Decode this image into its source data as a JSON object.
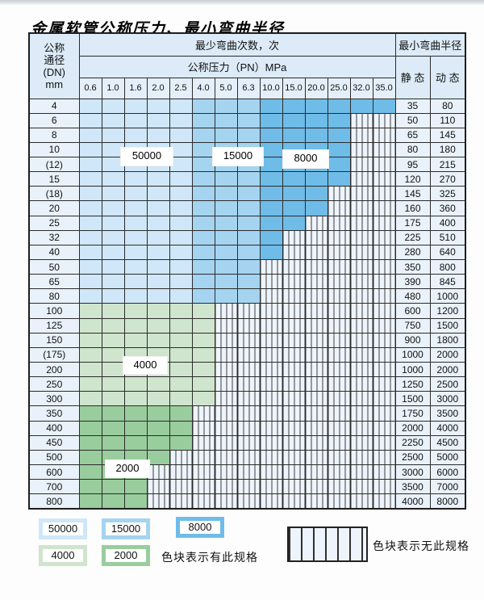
{
  "page": {
    "title": "金属软管公称压力、最小弯曲半径"
  },
  "table": {
    "header": {
      "dn_label_lines": [
        "公称",
        "通径",
        "(DN)",
        "mm"
      ],
      "cycles_label": "最少弯曲次数，次",
      "pressure_label": "公称压力（PN）MPa",
      "radius_label": "最小弯曲半径",
      "static_label": "静 态",
      "dynamic_label": "动 态"
    },
    "band_by_column": [
      "blue_50000",
      "blue_50000",
      "blue_50000",
      "blue_50000",
      "blue_50000",
      "blue_15000",
      "blue_15000",
      "blue_15000",
      "blue_8000",
      "blue_8000",
      "blue_8000",
      "blue_8000",
      "blue_8000",
      "blue_8000"
    ]
  },
  "overlay_labels": {
    "l50000": "50000",
    "l15000": "15000",
    "l8000": "8000",
    "l4000": "4000",
    "l2000": "2000"
  },
  "legend": {
    "items": [
      {
        "label": "50000",
        "band": "blue_50000"
      },
      {
        "label": "15000",
        "band": "blue_15000"
      },
      {
        "label": "8000",
        "band": "blue_8000"
      },
      {
        "label": "4000",
        "band": "green_4000"
      },
      {
        "label": "2000",
        "band": "green_2000"
      }
    ],
    "note_has_spec": "色块表示有此规格",
    "note_no_spec": "色块表示无此规格"
  },
  "colors": {
    "blue_50000": "#cfe7f8",
    "blue_15000": "#a5d4f0",
    "blue_8000": "#6fbce8",
    "green_4000": "#cfe5cd",
    "green_2000": "#99cd9d",
    "hatch_bg": "#eef4fb",
    "hatch_line": "#3c3c3c",
    "cell_bg": "#e9f2fa",
    "header_bg": "#dcebf7",
    "grid": "#2b2b2b"
  },
  "chart_data": {
    "type": "table",
    "title": "金属软管公称压力、最小弯曲半径",
    "pn_columns": [
      "0.6",
      "1.0",
      "1.6",
      "2.0",
      "2.5",
      "4.0",
      "5.0",
      "6.3",
      "10.0",
      "15.0",
      "20.0",
      "25.0",
      "32.0",
      "35.0"
    ],
    "cycle_bands_blue": [
      {
        "cycles": 50000,
        "pn_range": [
          "0.6",
          "2.5"
        ]
      },
      {
        "cycles": 15000,
        "pn_range": [
          "4.0",
          "6.3"
        ]
      },
      {
        "cycles": 8000,
        "pn_range": [
          "10.0",
          "35.0"
        ]
      }
    ],
    "legend_meaning": {
      "colored": "色块表示有此规格",
      "hatched": "色块表示无此规格"
    },
    "rows": [
      {
        "dn": "4",
        "colored_cols": 14,
        "palette": "blue",
        "static": 35,
        "dynamic": 80
      },
      {
        "dn": "6",
        "colored_cols": 12,
        "palette": "blue",
        "static": 50,
        "dynamic": 110
      },
      {
        "dn": "8",
        "colored_cols": 12,
        "palette": "blue",
        "static": 65,
        "dynamic": 145
      },
      {
        "dn": "10",
        "colored_cols": 12,
        "palette": "blue",
        "static": 80,
        "dynamic": 180
      },
      {
        "dn": "(12)",
        "colored_cols": 12,
        "palette": "blue",
        "static": 95,
        "dynamic": 215
      },
      {
        "dn": "15",
        "colored_cols": 12,
        "palette": "blue",
        "static": 120,
        "dynamic": 270
      },
      {
        "dn": "(18)",
        "colored_cols": 11,
        "palette": "blue",
        "static": 145,
        "dynamic": 325
      },
      {
        "dn": "20",
        "colored_cols": 11,
        "palette": "blue",
        "static": 160,
        "dynamic": 360
      },
      {
        "dn": "25",
        "colored_cols": 10,
        "palette": "blue",
        "static": 175,
        "dynamic": 400
      },
      {
        "dn": "32",
        "colored_cols": 9,
        "palette": "blue",
        "static": 225,
        "dynamic": 510
      },
      {
        "dn": "40",
        "colored_cols": 9,
        "palette": "blue",
        "static": 280,
        "dynamic": 640
      },
      {
        "dn": "50",
        "colored_cols": 8,
        "palette": "blue",
        "static": 350,
        "dynamic": 800
      },
      {
        "dn": "65",
        "colored_cols": 8,
        "palette": "blue",
        "static": 390,
        "dynamic": 845
      },
      {
        "dn": "80",
        "colored_cols": 8,
        "palette": "blue",
        "static": 480,
        "dynamic": 1000
      },
      {
        "dn": "100",
        "colored_cols": 6,
        "palette": "green_4000",
        "static": 600,
        "dynamic": 1200
      },
      {
        "dn": "125",
        "colored_cols": 6,
        "palette": "green_4000",
        "static": 750,
        "dynamic": 1500
      },
      {
        "dn": "150",
        "colored_cols": 6,
        "palette": "green_4000",
        "static": 900,
        "dynamic": 1800
      },
      {
        "dn": "(175)",
        "colored_cols": 6,
        "palette": "green_4000",
        "static": 1000,
        "dynamic": 2000
      },
      {
        "dn": "200",
        "colored_cols": 6,
        "palette": "green_4000",
        "static": 1000,
        "dynamic": 2000
      },
      {
        "dn": "250",
        "colored_cols": 6,
        "palette": "green_4000",
        "static": 1250,
        "dynamic": 2500
      },
      {
        "dn": "300",
        "colored_cols": 6,
        "palette": "green_4000",
        "static": 1500,
        "dynamic": 3000
      },
      {
        "dn": "350",
        "colored_cols": 5,
        "palette": "green_2000",
        "static": 1750,
        "dynamic": 3500
      },
      {
        "dn": "400",
        "colored_cols": 5,
        "palette": "green_2000",
        "static": 2000,
        "dynamic": 4000
      },
      {
        "dn": "450",
        "colored_cols": 5,
        "palette": "green_2000",
        "static": 2250,
        "dynamic": 4500
      },
      {
        "dn": "500",
        "colored_cols": 4,
        "palette": "green_2000",
        "static": 2500,
        "dynamic": 5000
      },
      {
        "dn": "600",
        "colored_cols": 3,
        "palette": "green_2000",
        "static": 3000,
        "dynamic": 6000
      },
      {
        "dn": "700",
        "colored_cols": 3,
        "palette": "green_2000",
        "static": 3500,
        "dynamic": 7000
      },
      {
        "dn": "800",
        "colored_cols": 3,
        "palette": "green_2000",
        "static": 4000,
        "dynamic": 8000
      }
    ]
  }
}
